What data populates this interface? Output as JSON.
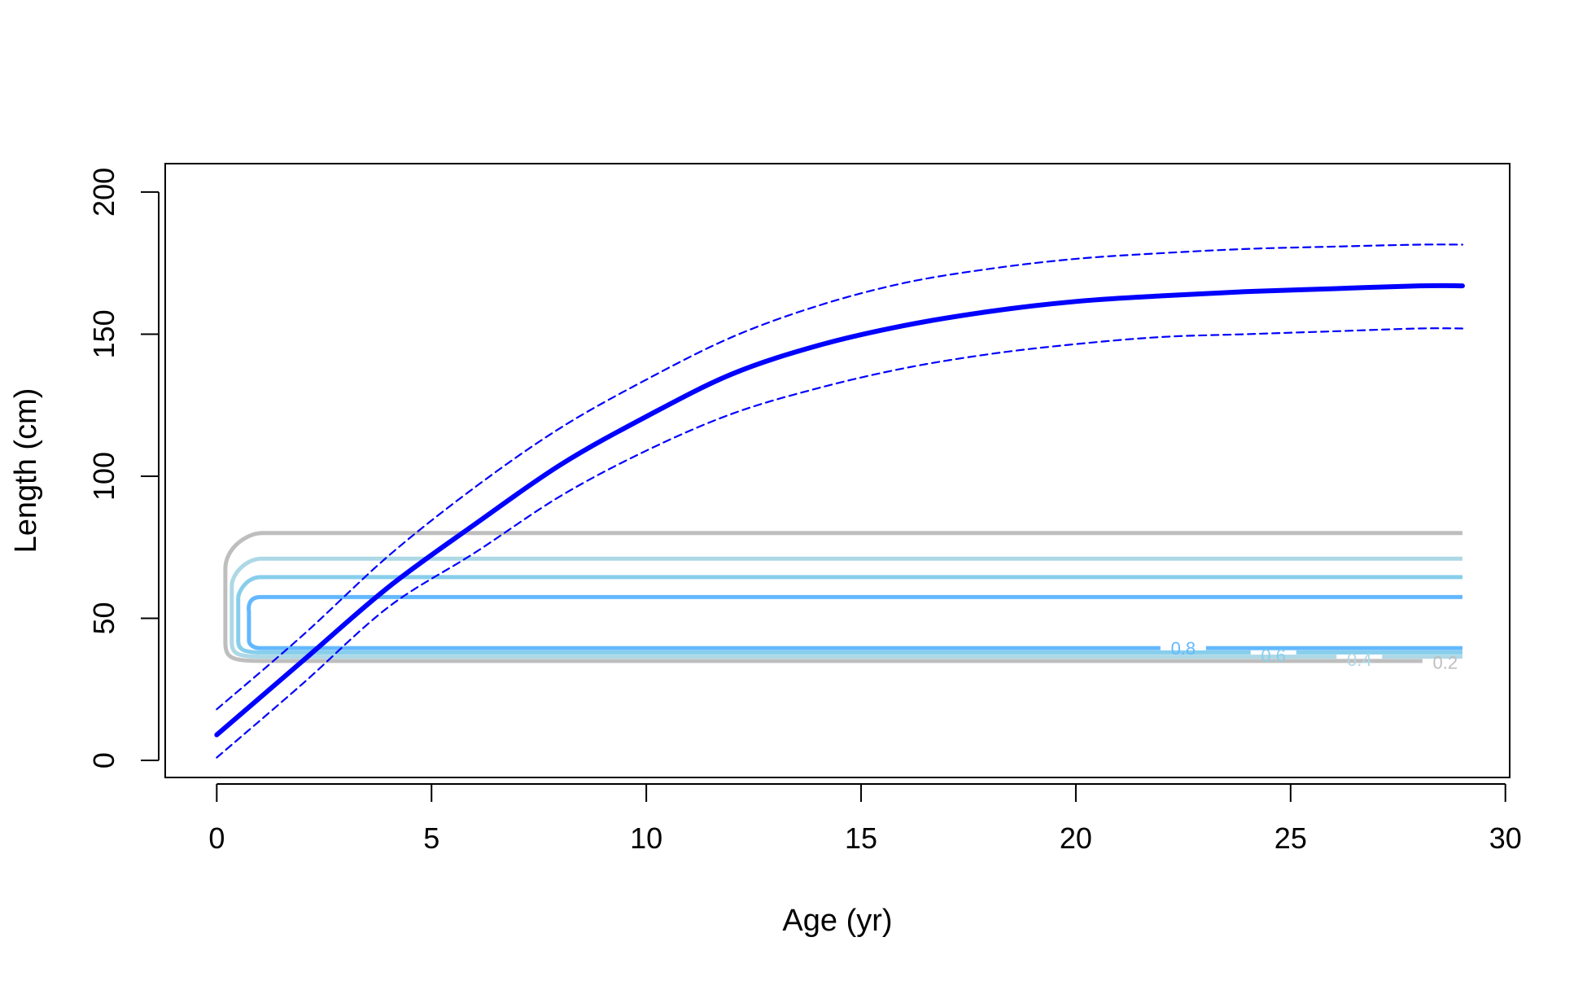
{
  "chart_data": {
    "type": "line",
    "title": "",
    "xlabel": "Age (yr)",
    "ylabel": "Length (cm)",
    "xlim": [
      -1.2,
      30.1
    ],
    "ylim": [
      -6,
      210
    ],
    "xticks": [
      0,
      5,
      10,
      15,
      20,
      25,
      30
    ],
    "yticks": [
      0,
      50,
      100,
      150,
      200
    ],
    "grid": false,
    "legend": "none",
    "series": [
      {
        "role": "growth-mean",
        "color": "#0000FF",
        "style": "solid",
        "x": [
          0,
          2,
          4,
          6,
          8,
          10,
          12,
          14,
          16,
          18,
          20,
          22,
          24,
          26,
          28,
          29
        ],
        "y": [
          9,
          35,
          61,
          83,
          104,
          121,
          136,
          146,
          153,
          158,
          161.5,
          163.5,
          165,
          166,
          167,
          167
        ]
      },
      {
        "role": "growth-upper",
        "color": "#0000FF",
        "style": "dashed",
        "x": [
          0,
          2,
          4,
          6,
          8,
          10,
          12,
          14,
          16,
          18,
          20,
          22,
          24,
          26,
          28,
          29
        ],
        "y": [
          18,
          44,
          72,
          96,
          117,
          134,
          149,
          160,
          168,
          173,
          176.5,
          178.5,
          180,
          180.8,
          181.5,
          181.5
        ]
      },
      {
        "role": "growth-lower",
        "color": "#0000FF",
        "style": "dashed",
        "x": [
          0,
          2,
          4,
          6,
          8,
          10,
          12,
          14,
          16,
          18,
          20,
          22,
          24,
          26,
          28,
          29
        ],
        "y": [
          1,
          27,
          54,
          73,
          93,
          109,
          122,
          131,
          138,
          143,
          146.5,
          149,
          150,
          151,
          152,
          152
        ]
      }
    ],
    "contours": [
      {
        "level": "0.2",
        "color": "#BEBEBE",
        "x0": 0.2,
        "x1": 29,
        "y_top": 80,
        "y_bottom": 35,
        "label_x": 28.6,
        "label_y": 34.5
      },
      {
        "level": "0.4",
        "color": "#ADD8E6",
        "x0": 0.35,
        "x1": 29,
        "y_top": 71,
        "y_bottom": 36.5,
        "label_x": 26.6,
        "label_y": 35.5
      },
      {
        "level": "0.6",
        "color": "#87CEEB",
        "x0": 0.5,
        "x1": 29,
        "y_top": 64.5,
        "y_bottom": 38,
        "label_x": 24.6,
        "label_y": 37
      },
      {
        "level": "0.8",
        "color": "#63B8FF",
        "x0": 0.75,
        "x1": 29,
        "y_top": 57.5,
        "y_bottom": 39.5,
        "label_x": 22.5,
        "label_y": 39.5
      }
    ]
  }
}
